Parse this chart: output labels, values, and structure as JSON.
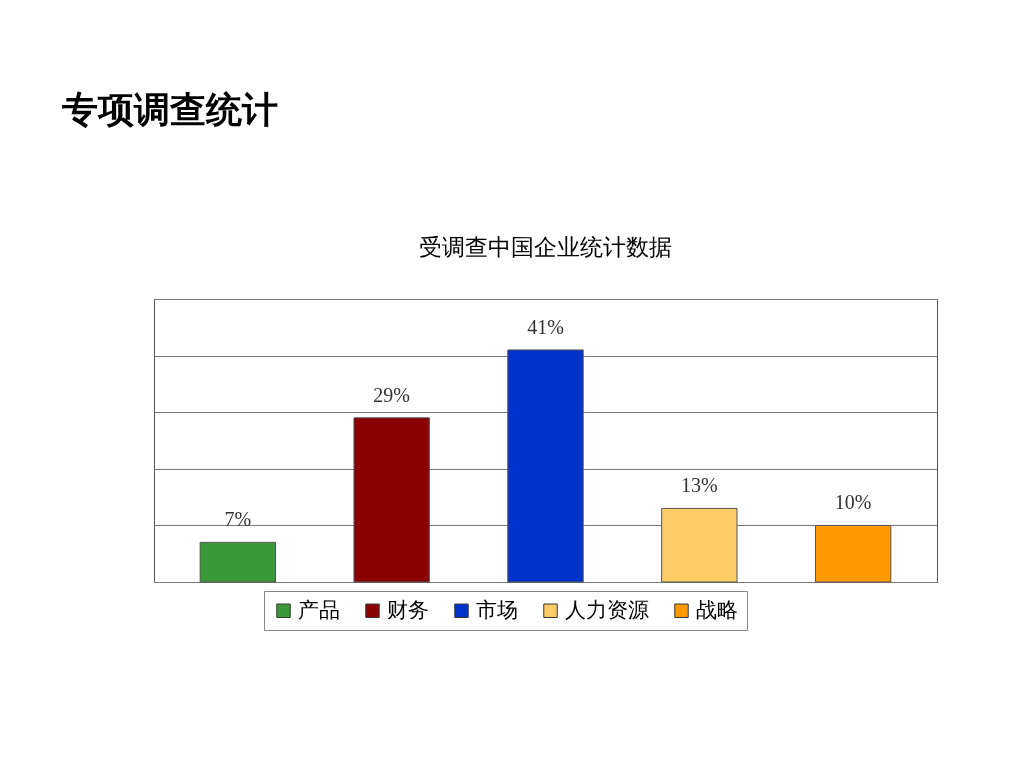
{
  "chart_data": {
    "type": "bar",
    "title": "专项调查统计",
    "subtitle": "受调查中国企业统计数据",
    "categories": [
      null,
      null,
      null,
      null,
      null
    ],
    "series": [
      {
        "name": "产品",
        "color": "#3a9a3a",
        "values": [
          7,
          null,
          null,
          null,
          null
        ],
        "value_labels": [
          "7%",
          null,
          null,
          null,
          null
        ]
      },
      {
        "name": "财务",
        "color": "#8b0000",
        "values": [
          null,
          29,
          null,
          null,
          null
        ],
        "value_labels": [
          null,
          "29%",
          null,
          null,
          null
        ]
      },
      {
        "name": "市场",
        "color": "#0033cc",
        "values": [
          null,
          null,
          41,
          null,
          null
        ],
        "value_labels": [
          null,
          null,
          "41%",
          null,
          null
        ]
      },
      {
        "name": "人力资源",
        "color": "#ffcc66",
        "values": [
          null,
          null,
          null,
          13,
          null
        ],
        "value_labels": [
          null,
          null,
          null,
          "13%",
          null
        ]
      },
      {
        "name": "战略",
        "color": "#ff9900",
        "values": [
          null,
          null,
          null,
          null,
          10
        ],
        "value_labels": [
          null,
          null,
          null,
          null,
          "10%"
        ]
      }
    ],
    "ylim": [
      0,
      50
    ],
    "yticks": [
      {
        "value": 0,
        "label": null
      },
      {
        "value": 10,
        "label": null
      },
      {
        "value": 20,
        "label": null
      },
      {
        "value": 30,
        "label": null
      },
      {
        "value": 40,
        "label": null
      },
      {
        "value": 50,
        "label": null
      }
    ],
    "grid": "y",
    "legend": "bottom",
    "stacked": true
  }
}
